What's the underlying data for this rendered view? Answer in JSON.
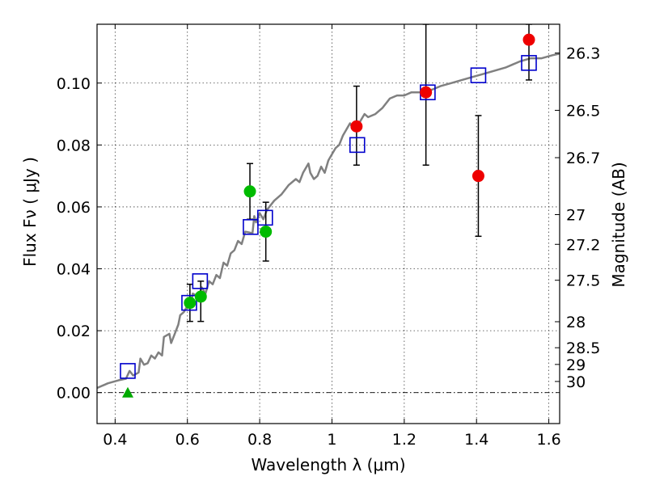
{
  "chart_data": {
    "type": "scatter",
    "xlabel": "Wavelength  λ (μm)",
    "ylabel": "Flux  Fν  ( μJy )",
    "y2label": "Magnitude (AB)",
    "xlim": [
      0.35,
      1.63
    ],
    "ylim": [
      -0.01,
      0.119
    ],
    "x_ticks": [
      0.4,
      0.6,
      0.8,
      1.0,
      1.2,
      1.4,
      1.6
    ],
    "x_tick_labels": [
      "0.4",
      "0.6",
      "0.8",
      "1",
      "1.2",
      "1.4",
      "1.6"
    ],
    "y_ticks": [
      0.0,
      0.02,
      0.04,
      0.06,
      0.08,
      0.1
    ],
    "y_tick_labels": [
      "0.00",
      "0.02",
      "0.04",
      "0.06",
      "0.08",
      "0.10"
    ],
    "mag_ticks": [
      {
        "label": "26.3",
        "flux": 0.1097
      },
      {
        "label": "26.5",
        "flux": 0.0912
      },
      {
        "label": "26.7",
        "flux": 0.0759
      },
      {
        "label": "27",
        "flux": 0.0575
      },
      {
        "label": "27.2",
        "flux": 0.0479
      },
      {
        "label": "27.5",
        "flux": 0.0363
      },
      {
        "label": "28",
        "flux": 0.0229
      },
      {
        "label": "28.5",
        "flux": 0.0145
      },
      {
        "label": "29",
        "flux": 0.0091
      },
      {
        "label": "30",
        "flux": 0.0036
      }
    ],
    "grid": true,
    "zero_line": 0.0,
    "series": [
      {
        "kind": "line",
        "color": "#808080",
        "points": [
          [
            0.35,
            0.0015
          ],
          [
            0.38,
            0.003
          ],
          [
            0.41,
            0.004
          ],
          [
            0.43,
            0.0045
          ],
          [
            0.44,
            0.007
          ],
          [
            0.45,
            0.0055
          ],
          [
            0.465,
            0.0065
          ],
          [
            0.47,
            0.011
          ],
          [
            0.48,
            0.009
          ],
          [
            0.49,
            0.0095
          ],
          [
            0.5,
            0.012
          ],
          [
            0.51,
            0.011
          ],
          [
            0.52,
            0.013
          ],
          [
            0.53,
            0.012
          ],
          [
            0.535,
            0.018
          ],
          [
            0.55,
            0.019
          ],
          [
            0.555,
            0.016
          ],
          [
            0.565,
            0.019
          ],
          [
            0.575,
            0.022
          ],
          [
            0.58,
            0.025
          ],
          [
            0.59,
            0.026
          ],
          [
            0.6,
            0.028
          ],
          [
            0.61,
            0.029
          ],
          [
            0.615,
            0.032
          ],
          [
            0.63,
            0.031
          ],
          [
            0.64,
            0.034
          ],
          [
            0.65,
            0.032
          ],
          [
            0.66,
            0.036
          ],
          [
            0.67,
            0.035
          ],
          [
            0.68,
            0.038
          ],
          [
            0.69,
            0.037
          ],
          [
            0.7,
            0.042
          ],
          [
            0.71,
            0.041
          ],
          [
            0.72,
            0.045
          ],
          [
            0.73,
            0.046
          ],
          [
            0.74,
            0.049
          ],
          [
            0.75,
            0.048
          ],
          [
            0.76,
            0.052
          ],
          [
            0.78,
            0.0515
          ],
          [
            0.785,
            0.057
          ],
          [
            0.79,
            0.055
          ],
          [
            0.8,
            0.058
          ],
          [
            0.81,
            0.056
          ],
          [
            0.82,
            0.059
          ],
          [
            0.84,
            0.062
          ],
          [
            0.86,
            0.064
          ],
          [
            0.88,
            0.067
          ],
          [
            0.9,
            0.069
          ],
          [
            0.91,
            0.068
          ],
          [
            0.92,
            0.071
          ],
          [
            0.935,
            0.074
          ],
          [
            0.94,
            0.071
          ],
          [
            0.95,
            0.069
          ],
          [
            0.96,
            0.07
          ],
          [
            0.97,
            0.073
          ],
          [
            0.98,
            0.071
          ],
          [
            0.99,
            0.075
          ],
          [
            1.0,
            0.077
          ],
          [
            1.01,
            0.079
          ],
          [
            1.02,
            0.08
          ],
          [
            1.03,
            0.083
          ],
          [
            1.05,
            0.087
          ],
          [
            1.06,
            0.085
          ],
          [
            1.07,
            0.086
          ],
          [
            1.08,
            0.088
          ],
          [
            1.09,
            0.09
          ],
          [
            1.1,
            0.089
          ],
          [
            1.12,
            0.09
          ],
          [
            1.14,
            0.092
          ],
          [
            1.16,
            0.095
          ],
          [
            1.18,
            0.096
          ],
          [
            1.2,
            0.096
          ],
          [
            1.22,
            0.097
          ],
          [
            1.25,
            0.097
          ],
          [
            1.28,
            0.098
          ],
          [
            1.3,
            0.099
          ],
          [
            1.33,
            0.1
          ],
          [
            1.36,
            0.101
          ],
          [
            1.39,
            0.102
          ],
          [
            1.42,
            0.103
          ],
          [
            1.45,
            0.104
          ],
          [
            1.48,
            0.105
          ],
          [
            1.5,
            0.106
          ],
          [
            1.52,
            0.107
          ],
          [
            1.55,
            0.108
          ],
          [
            1.58,
            0.108
          ],
          [
            1.61,
            0.109
          ],
          [
            1.63,
            0.1095
          ]
        ]
      },
      {
        "kind": "squares",
        "color": "#0000cc",
        "points": [
          [
            0.435,
            0.007
          ],
          [
            0.605,
            0.029
          ],
          [
            0.635,
            0.036
          ],
          [
            0.775,
            0.0535
          ],
          [
            0.815,
            0.0565
          ],
          [
            1.07,
            0.08
          ],
          [
            1.265,
            0.097
          ],
          [
            1.405,
            0.1025
          ],
          [
            1.545,
            0.1065
          ]
        ]
      },
      {
        "kind": "circles",
        "color": "#00bb00",
        "points": [
          {
            "x": 0.607,
            "y": 0.029,
            "lo": 0.023,
            "hi": 0.035
          },
          {
            "x": 0.637,
            "y": 0.031,
            "lo": 0.023,
            "hi": 0.036
          },
          {
            "x": 0.773,
            "y": 0.065,
            "lo": 0.056,
            "hi": 0.074
          },
          {
            "x": 0.817,
            "y": 0.052,
            "lo": 0.0425,
            "hi": 0.0615
          }
        ]
      },
      {
        "kind": "circles",
        "color": "#ee0000",
        "points": [
          {
            "x": 1.068,
            "y": 0.086,
            "lo": 0.0735,
            "hi": 0.099
          },
          {
            "x": 1.26,
            "y": 0.097,
            "lo": 0.0735,
            "hi": 0.119
          },
          {
            "x": 1.405,
            "y": 0.07,
            "lo": 0.0505,
            "hi": 0.0895
          },
          {
            "x": 1.545,
            "y": 0.114,
            "lo": 0.101,
            "hi": 0.119
          }
        ]
      },
      {
        "kind": "triangles",
        "color": "#00aa00",
        "points": [
          [
            0.435,
            0.0
          ]
        ]
      }
    ]
  }
}
